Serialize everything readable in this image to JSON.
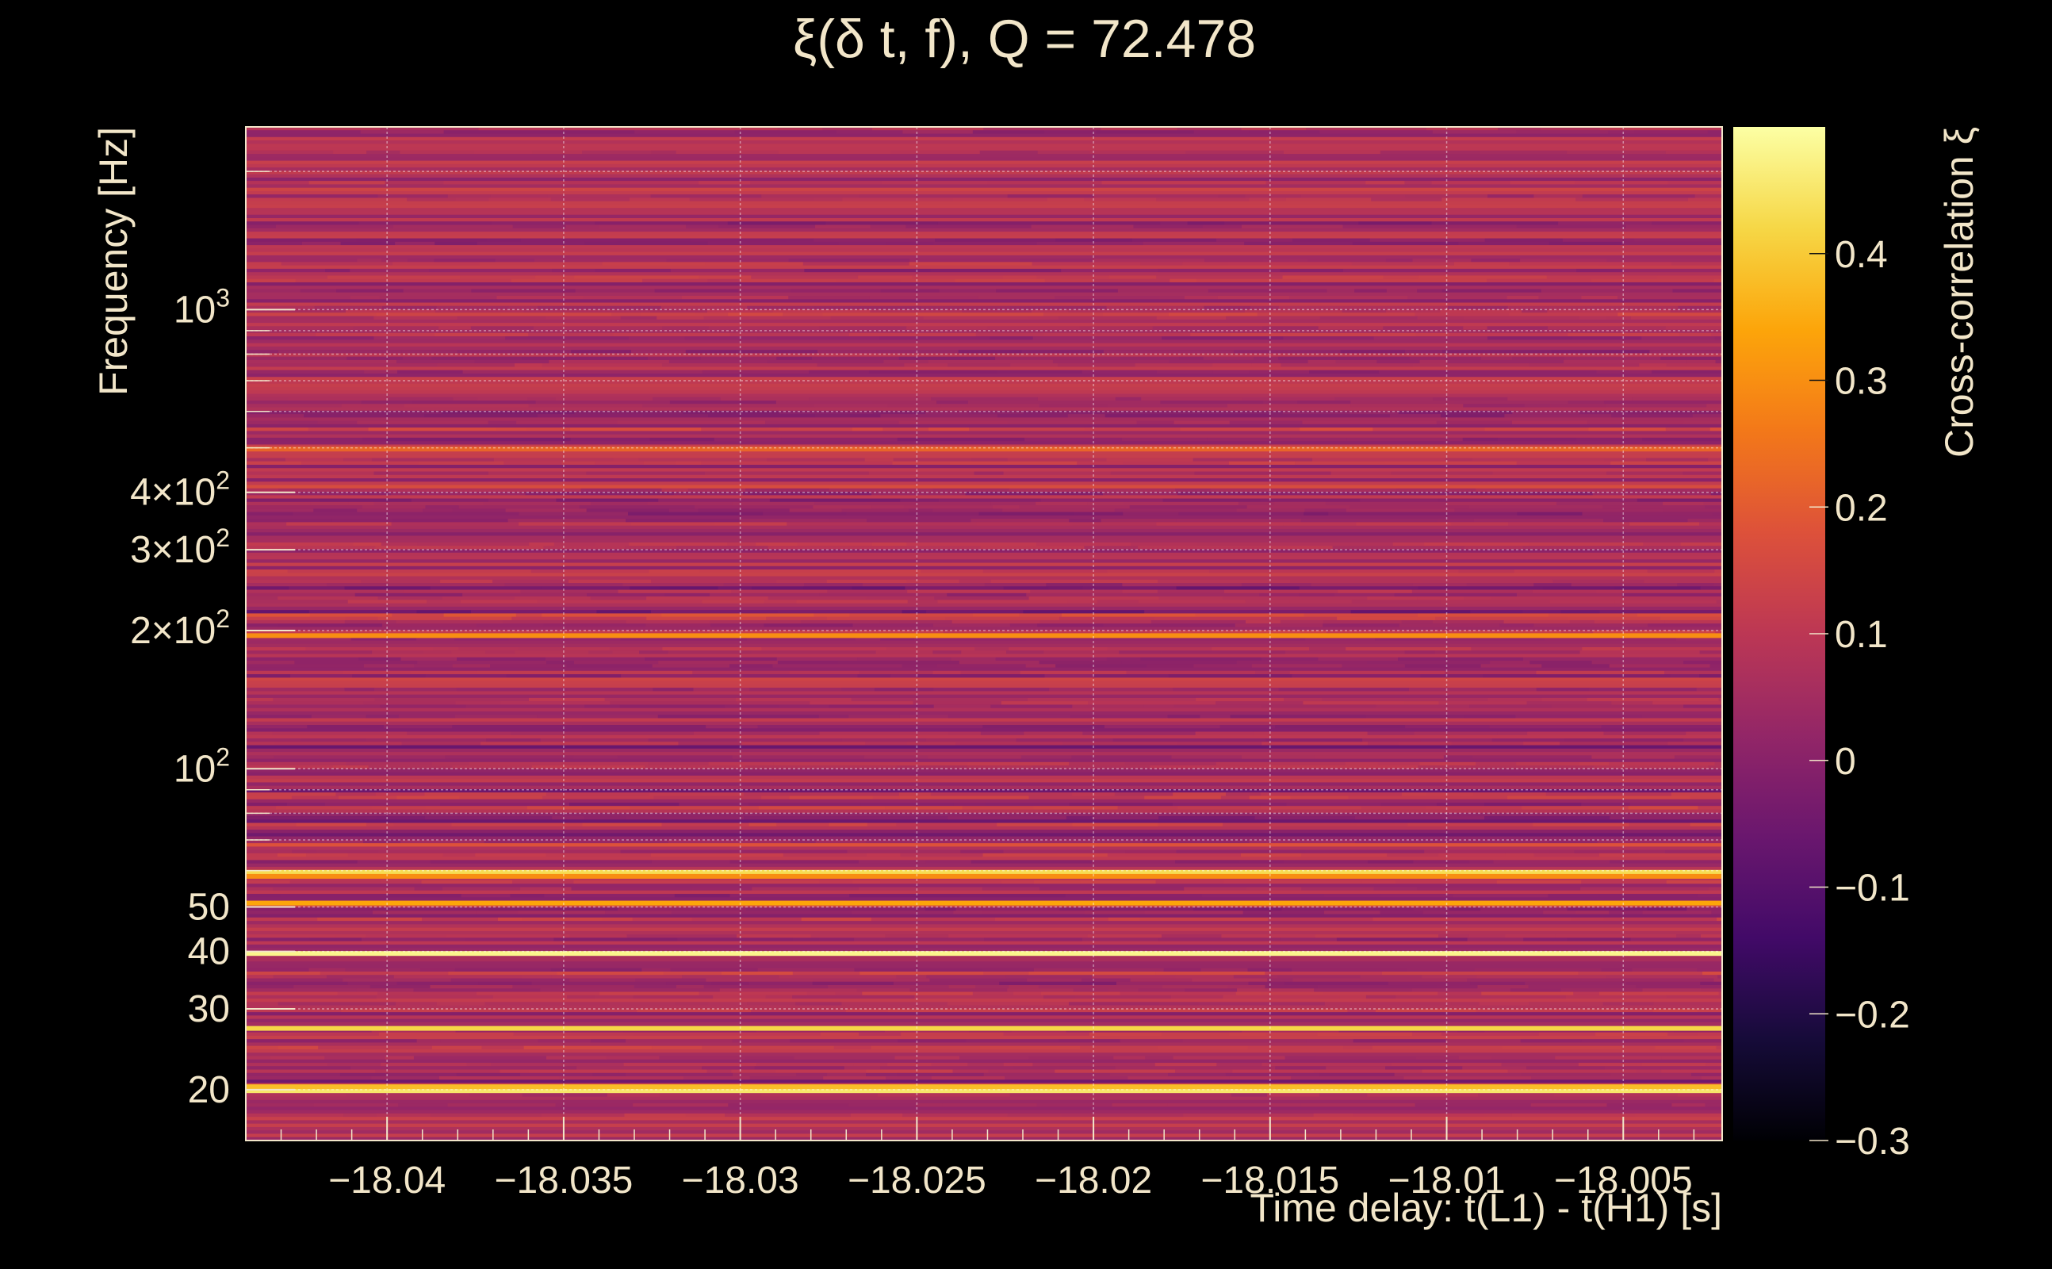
{
  "chart_data": {
    "type": "heatmap",
    "title": "ξ(δ t, f), Q = 72.478",
    "xlabel": "Time delay: t(L1) - t(H1) [s]",
    "ylabel": "Frequency [Hz]",
    "colorbar_label": "Cross-correlation ξ",
    "x_scale": "linear",
    "y_scale": "log",
    "xlim": [
      -18.044,
      -18.0022
    ],
    "ylim": [
      15.5,
      2500
    ],
    "clim": [
      -0.3,
      0.5
    ],
    "colormap": "inferno",
    "grid": true,
    "x_ticks": [
      {
        "value": -18.04,
        "label": "−18.04"
      },
      {
        "value": -18.035,
        "label": "−18.035"
      },
      {
        "value": -18.03,
        "label": "−18.03"
      },
      {
        "value": -18.025,
        "label": "−18.025"
      },
      {
        "value": -18.02,
        "label": "−18.02"
      },
      {
        "value": -18.015,
        "label": "−18.015"
      },
      {
        "value": -18.01,
        "label": "−18.01"
      },
      {
        "value": -18.005,
        "label": "−18.005"
      }
    ],
    "y_ticks": [
      {
        "value": 20,
        "mantissa": "20",
        "exponent": ""
      },
      {
        "value": 30,
        "mantissa": "30",
        "exponent": ""
      },
      {
        "value": 40,
        "mantissa": "40",
        "exponent": ""
      },
      {
        "value": 50,
        "mantissa": "50",
        "exponent": ""
      },
      {
        "value": 100,
        "mantissa": "10",
        "exponent": "2"
      },
      {
        "value": 200,
        "mantissa": "2×10",
        "exponent": "2"
      },
      {
        "value": 300,
        "mantissa": "3×10",
        "exponent": "2"
      },
      {
        "value": 400,
        "mantissa": "4×10",
        "exponent": "2"
      },
      {
        "value": 1000,
        "mantissa": "10",
        "exponent": "3"
      }
    ],
    "colorbar_ticks": [
      {
        "value": -0.3,
        "label": "−0.3"
      },
      {
        "value": -0.2,
        "label": "−0.2"
      },
      {
        "value": -0.1,
        "label": "−0.1"
      },
      {
        "value": 0,
        "label": "0"
      },
      {
        "value": 0.1,
        "label": "0.1"
      },
      {
        "value": 0.2,
        "label": "0.2"
      },
      {
        "value": 0.3,
        "label": "0.3"
      },
      {
        "value": 0.4,
        "label": "0.4"
      }
    ],
    "bright_bands": [
      {
        "frequency": 19.9,
        "value": 0.45
      },
      {
        "frequency": 20.3,
        "value": 0.38
      },
      {
        "frequency": 27.2,
        "value": 0.42
      },
      {
        "frequency": 39.6,
        "value": 0.48
      },
      {
        "frequency": 51.0,
        "value": 0.34
      },
      {
        "frequency": 59.5,
        "value": 0.43
      },
      {
        "frequency": 58.3,
        "value": 0.3
      },
      {
        "frequency": 195,
        "value": 0.3
      },
      {
        "frequency": 497,
        "value": 0.22
      }
    ]
  }
}
